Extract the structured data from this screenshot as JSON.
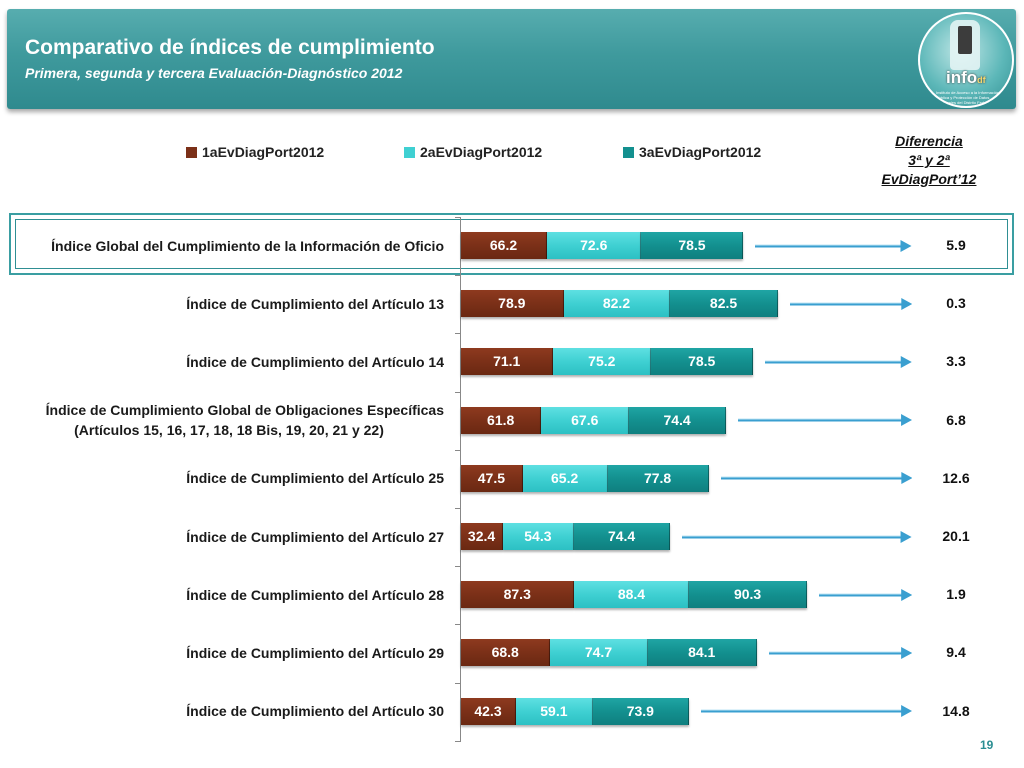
{
  "header": {
    "title": "Comparativo de índices de cumplimiento",
    "subtitle": "Primera, segunda y tercera Evaluación-Diagnóstico 2012"
  },
  "logo": {
    "word": "info",
    "suffix": "df",
    "small_text": "Instituto de Acceso a la Información Pública y Protección de Datos Personales del Distrito Federal"
  },
  "diff_header": [
    "Diferencia",
    "3ª  y 2ª",
    "EvDiagPort’12"
  ],
  "page_number": "19",
  "colors": {
    "series1": "#7b3018",
    "series2": "#3fd0d2",
    "series3": "#13908f",
    "header": "#3f9a9d",
    "arrow": "#3a9fd0"
  },
  "chart_data": {
    "type": "bar",
    "orientation": "horizontal",
    "stacked": true,
    "categories": [
      "Índice Global del Cumplimiento de la Información de Oficio",
      "Índice de Cumplimiento del Artículo 13",
      "Índice de Cumplimiento del Artículo 14",
      "Índice de Cumplimiento Global de Obligaciones Específicas\n(Artículos 15, 16, 17, 18, 18 Bis, 19, 20, 21 y 22)",
      "Índice de Cumplimiento del Artículo 25",
      "Índice de Cumplimiento del Artículo 27",
      "Índice de Cumplimiento del Artículo 28",
      "Índice de Cumplimiento del Artículo 29",
      "Índice de Cumplimiento del Artículo 30"
    ],
    "series": [
      {
        "name": "1aEvDiagPort2012",
        "values": [
          66.2,
          78.9,
          71.1,
          61.8,
          47.5,
          32.4,
          87.3,
          68.8,
          42.3
        ]
      },
      {
        "name": "2aEvDiagPort2012",
        "values": [
          72.6,
          82.2,
          75.2,
          67.6,
          65.2,
          54.3,
          88.4,
          74.7,
          59.1
        ]
      },
      {
        "name": "3aEvDiagPort2012",
        "values": [
          78.5,
          82.5,
          78.5,
          74.4,
          77.8,
          74.4,
          90.3,
          84.1,
          73.9
        ]
      }
    ],
    "differences": [
      "5.9",
      "0.3",
      "3.3",
      "6.8",
      "12.6",
      "20.1",
      "1.9",
      "9.4",
      "14.8"
    ],
    "legend_position": "top",
    "grid": false
  }
}
